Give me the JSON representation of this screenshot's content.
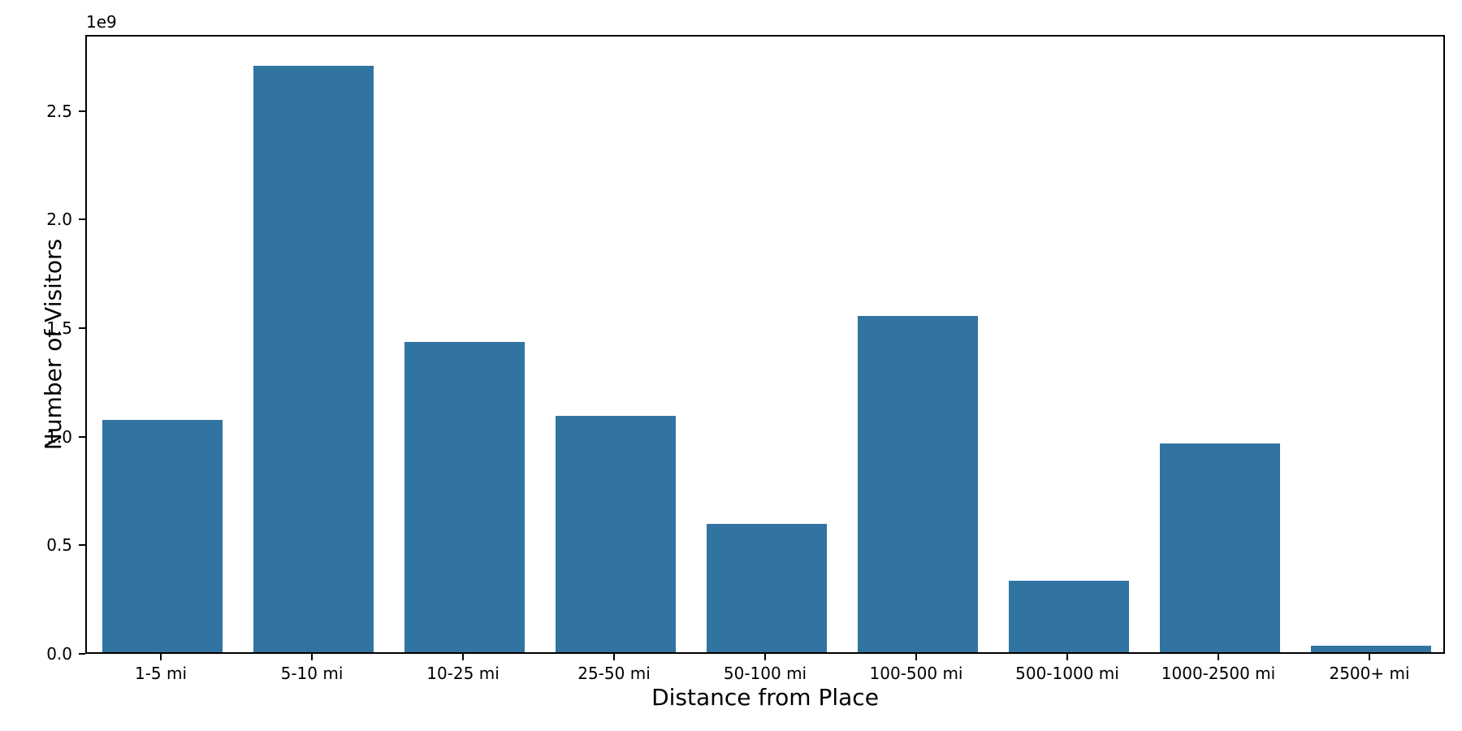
{
  "chart_data": {
    "type": "bar",
    "title": "",
    "xlabel": "Distance from Place",
    "ylabel": "Number of Visitors",
    "offset_text": "1e9",
    "categories": [
      "1-5 mi",
      "5-10 mi",
      "10-25 mi",
      "25-50 mi",
      "50-100 mi",
      "100-500 mi",
      "500-1000 mi",
      "1000-2500 mi",
      "2500+ mi"
    ],
    "values": [
      1070000000,
      2700000000,
      1430000000,
      1090000000,
      590000000,
      1550000000,
      330000000,
      960000000,
      30000000
    ],
    "yticks": [
      0,
      500000000,
      1000000000,
      1500000000,
      2000000000,
      2500000000
    ],
    "yticklabels": [
      "0.0",
      "0.5",
      "1.0",
      "1.5",
      "2.0",
      "2.5"
    ],
    "ylim": [
      0,
      2850000000
    ],
    "bar_color": "#3274a1",
    "axis_color": "#000000",
    "background_color": "#ffffff",
    "grid": false,
    "legend": null,
    "bar_width_fraction": 0.8
  }
}
